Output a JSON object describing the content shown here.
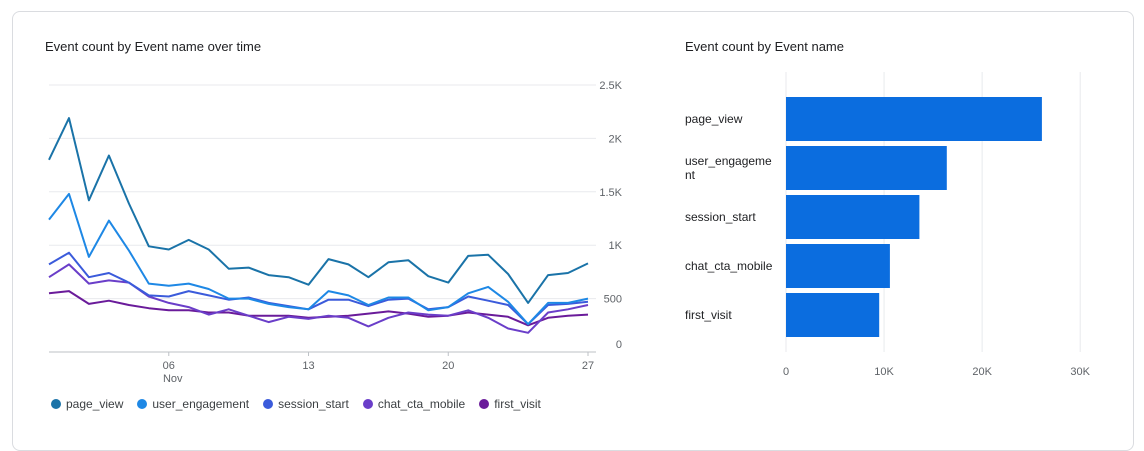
{
  "line_chart": {
    "title": "Event count by Event name over time",
    "x_ticks": [
      {
        "day": 6,
        "label": "06",
        "sublabel": "Nov"
      },
      {
        "day": 13,
        "label": "13",
        "sublabel": ""
      },
      {
        "day": 20,
        "label": "20",
        "sublabel": ""
      },
      {
        "day": 27,
        "label": "27",
        "sublabel": ""
      }
    ],
    "y_ticks": [
      "0",
      "500",
      "1K",
      "1.5K",
      "2K",
      "2.5K"
    ]
  },
  "bar_chart": {
    "title": "Event count by Event name",
    "x_ticks": [
      "0",
      "10K",
      "20K",
      "30K"
    ]
  },
  "legend": [
    {
      "name": "page_view",
      "color": "#1a73a8"
    },
    {
      "name": "user_engagement",
      "color": "#1e88e5"
    },
    {
      "name": "session_start",
      "color": "#3b5bdb"
    },
    {
      "name": "chat_cta_mobile",
      "color": "#6a3ec9"
    },
    {
      "name": "first_visit",
      "color": "#6a1b9a"
    }
  ],
  "chart_data": [
    {
      "type": "line",
      "title": "Event count by Event name over time",
      "x": [
        31,
        32,
        33,
        34,
        35,
        36,
        37,
        38,
        39,
        40,
        41,
        42,
        43,
        44,
        45,
        46,
        47,
        48,
        49,
        50,
        51,
        52,
        53,
        54,
        55,
        56,
        57,
        58
      ],
      "x_note_days": "Oct 31 – Nov 27",
      "ylim": [
        0,
        2500
      ],
      "grid": true,
      "legend_position": "bottom",
      "series": [
        {
          "name": "page_view",
          "values": [
            1800,
            2190,
            1420,
            1840,
            1390,
            990,
            960,
            1050,
            960,
            780,
            790,
            720,
            700,
            630,
            870,
            820,
            700,
            840,
            860,
            710,
            650,
            900,
            910,
            730,
            460,
            720,
            740,
            830
          ]
        },
        {
          "name": "user_engagement",
          "values": [
            1240,
            1480,
            890,
            1230,
            950,
            640,
            620,
            640,
            590,
            500,
            500,
            450,
            420,
            400,
            570,
            530,
            440,
            510,
            510,
            390,
            420,
            550,
            610,
            470,
            260,
            460,
            460,
            500
          ]
        },
        {
          "name": "session_start",
          "values": [
            820,
            930,
            700,
            740,
            650,
            530,
            520,
            570,
            530,
            490,
            510,
            460,
            430,
            400,
            490,
            490,
            430,
            490,
            500,
            400,
            420,
            520,
            480,
            440,
            260,
            440,
            450,
            470
          ]
        },
        {
          "name": "chat_cta_mobile",
          "values": [
            700,
            820,
            640,
            670,
            650,
            520,
            460,
            420,
            350,
            400,
            340,
            280,
            330,
            310,
            340,
            320,
            240,
            320,
            370,
            350,
            340,
            390,
            320,
            220,
            180,
            370,
            400,
            440
          ]
        },
        {
          "name": "first_visit",
          "values": [
            550,
            570,
            450,
            480,
            440,
            410,
            390,
            390,
            370,
            370,
            340,
            340,
            340,
            320,
            330,
            340,
            360,
            380,
            360,
            330,
            340,
            370,
            350,
            330,
            250,
            320,
            340,
            350
          ]
        }
      ]
    },
    {
      "type": "bar",
      "orientation": "horizontal",
      "title": "Event count by Event name",
      "categories": [
        "page_view",
        "user_engagement",
        "session_start",
        "chat_cta_mobile",
        "first_visit"
      ],
      "category_labels": [
        [
          "page_view"
        ],
        [
          "user_engageme",
          "nt"
        ],
        [
          "session_start"
        ],
        [
          "chat_cta_mobile"
        ],
        [
          "first_visit"
        ]
      ],
      "values": [
        26100,
        16400,
        13600,
        10600,
        9500
      ],
      "xlim": [
        0,
        31000
      ],
      "grid": true,
      "color": "#0b6ddf"
    }
  ]
}
